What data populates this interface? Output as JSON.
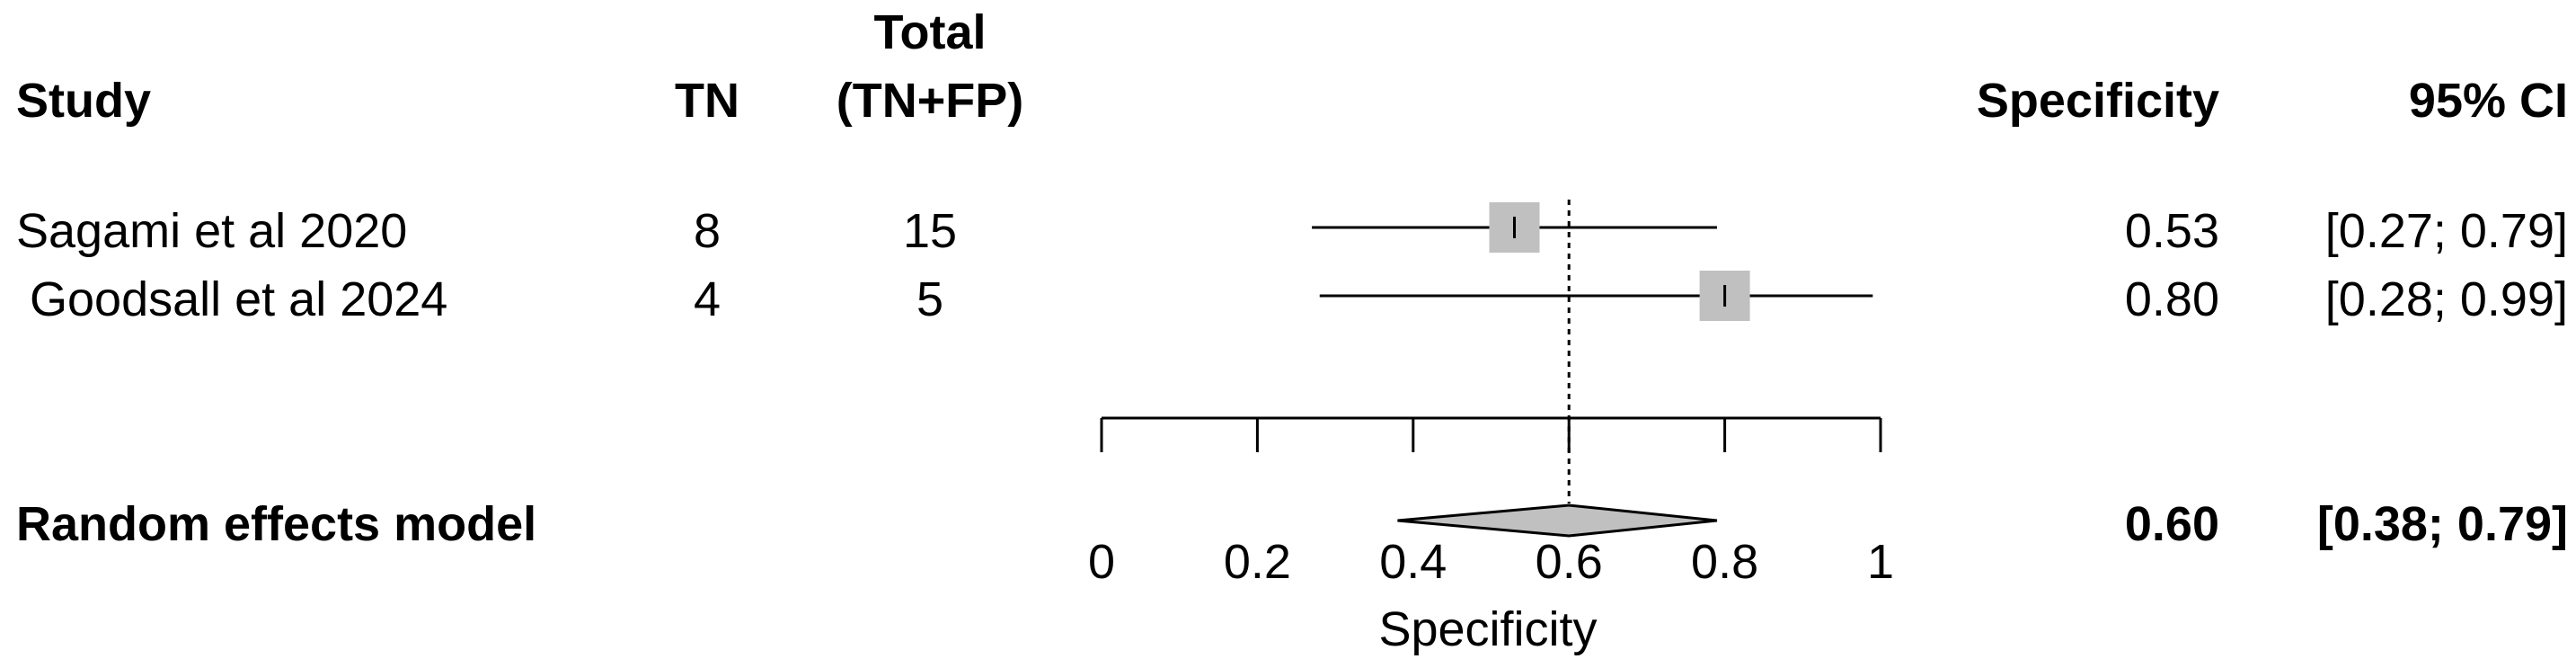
{
  "chart_data": {
    "type": "forest",
    "columns": {
      "study": "Study",
      "tn": "TN",
      "total_line1": "Total",
      "total_line2": "(TN+FP)",
      "specificity": "Specificity",
      "ci": "95% CI"
    },
    "studies": [
      {
        "name": "Sagami et al 2020",
        "tn": "8",
        "total": "15",
        "spec": 0.53,
        "lower": 0.27,
        "upper": 0.79,
        "spec_label": "0.53",
        "ci_label": "[0.27; 0.79]"
      },
      {
        "name": " Goodsall et al 2024",
        "tn": "4",
        "total": "5",
        "spec": 0.8,
        "lower": 0.28,
        "upper": 0.99,
        "spec_label": "0.80",
        "ci_label": "[0.28; 0.99]"
      }
    ],
    "pooled": {
      "name": "Random effects model",
      "spec": 0.6,
      "lower": 0.38,
      "upper": 0.79,
      "spec_label": "0.60",
      "ci_label": "[0.38; 0.79]"
    },
    "xlim": [
      0,
      1
    ],
    "ticks": [
      0,
      0.2,
      0.4,
      0.6,
      0.8,
      1
    ],
    "tick_labels": [
      "0",
      "0.2",
      "0.4",
      "0.6",
      "0.8",
      "1"
    ],
    "xlabel": "Specificity",
    "reference_line": 0.6,
    "colors": {
      "square": "#c0c0c0",
      "diamond": "#c0c0c0",
      "line": "#000000"
    }
  }
}
